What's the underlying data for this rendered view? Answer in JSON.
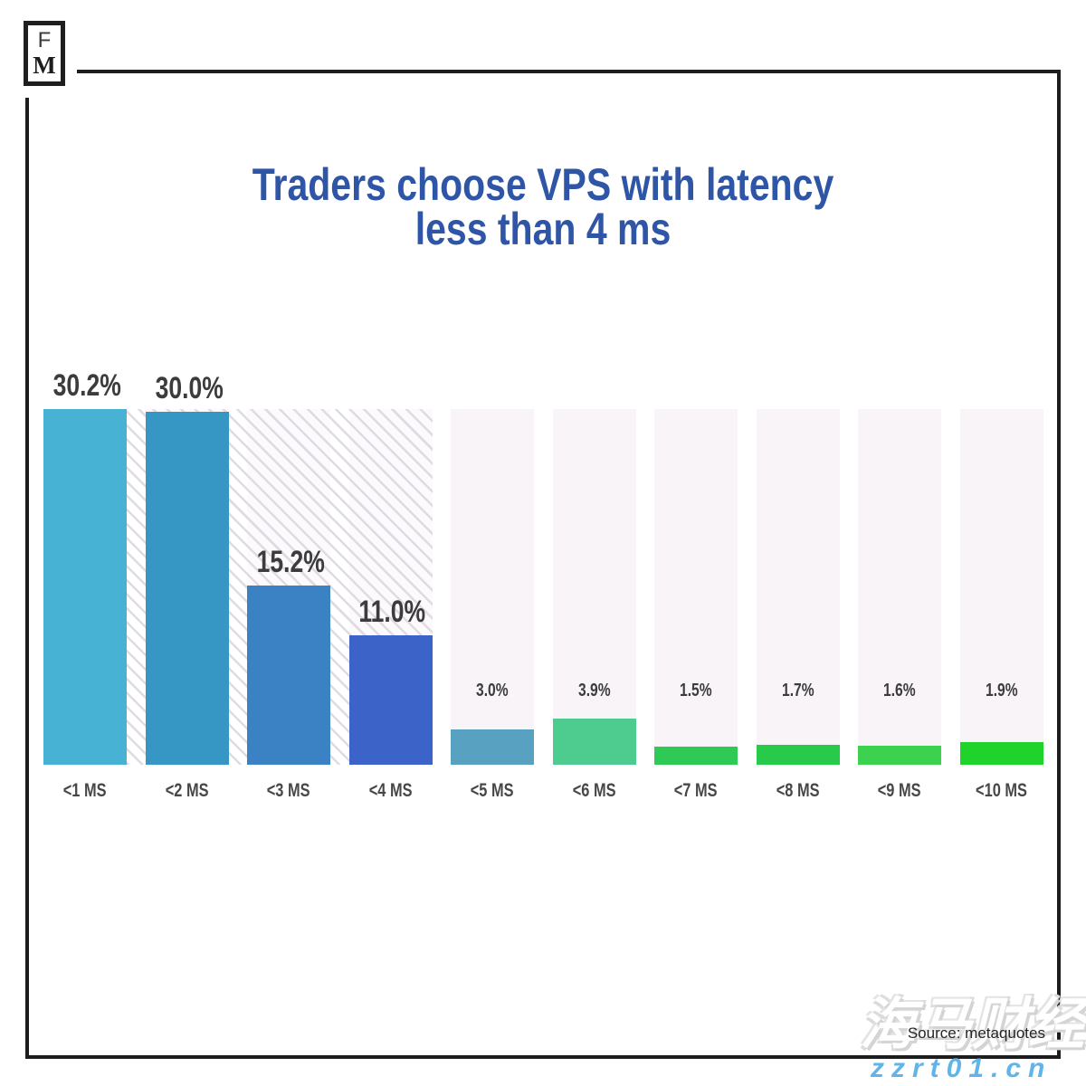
{
  "brand": {
    "logo_top": "F",
    "logo_bottom": "M"
  },
  "title": {
    "line1": "Traders choose VPS with latency",
    "line2": "less than 4 ms",
    "color": "#2e55a6"
  },
  "source": {
    "label": "Source: metaquotes"
  },
  "watermark": {
    "cn_text": "海马财经",
    "url_text": "zzrt01.cn",
    "url_color": "#60b4e9"
  },
  "chart_data": {
    "type": "bar",
    "title": "Traders choose VPS with latency less than 4 ms",
    "categories": [
      "<1 MS",
      "<2 MS",
      "<3 MS",
      "<4 MS",
      "<5 MS",
      "<6 MS",
      "<7 MS",
      "<8 MS",
      "<9 MS",
      "<10 MS"
    ],
    "values": [
      30.2,
      30.0,
      15.2,
      11.0,
      3.0,
      3.9,
      1.5,
      1.7,
      1.6,
      1.9
    ],
    "value_suffix": "%",
    "xlabel": "",
    "ylabel": "",
    "ylim": [
      0,
      30.2
    ],
    "grid": false,
    "legend": false,
    "bar_colors": [
      "#47b2d3",
      "#3697c4",
      "#3a82c4",
      "#3c63c7",
      "#58a1c1",
      "#4ecb8e",
      "#2fc956",
      "#28ca49",
      "#3cd14f",
      "#1ed42b"
    ],
    "track_color": "#f8f4f8",
    "value_label_color": "#3c3c3c",
    "hatched_category_indexes": [
      1,
      2,
      3
    ]
  }
}
